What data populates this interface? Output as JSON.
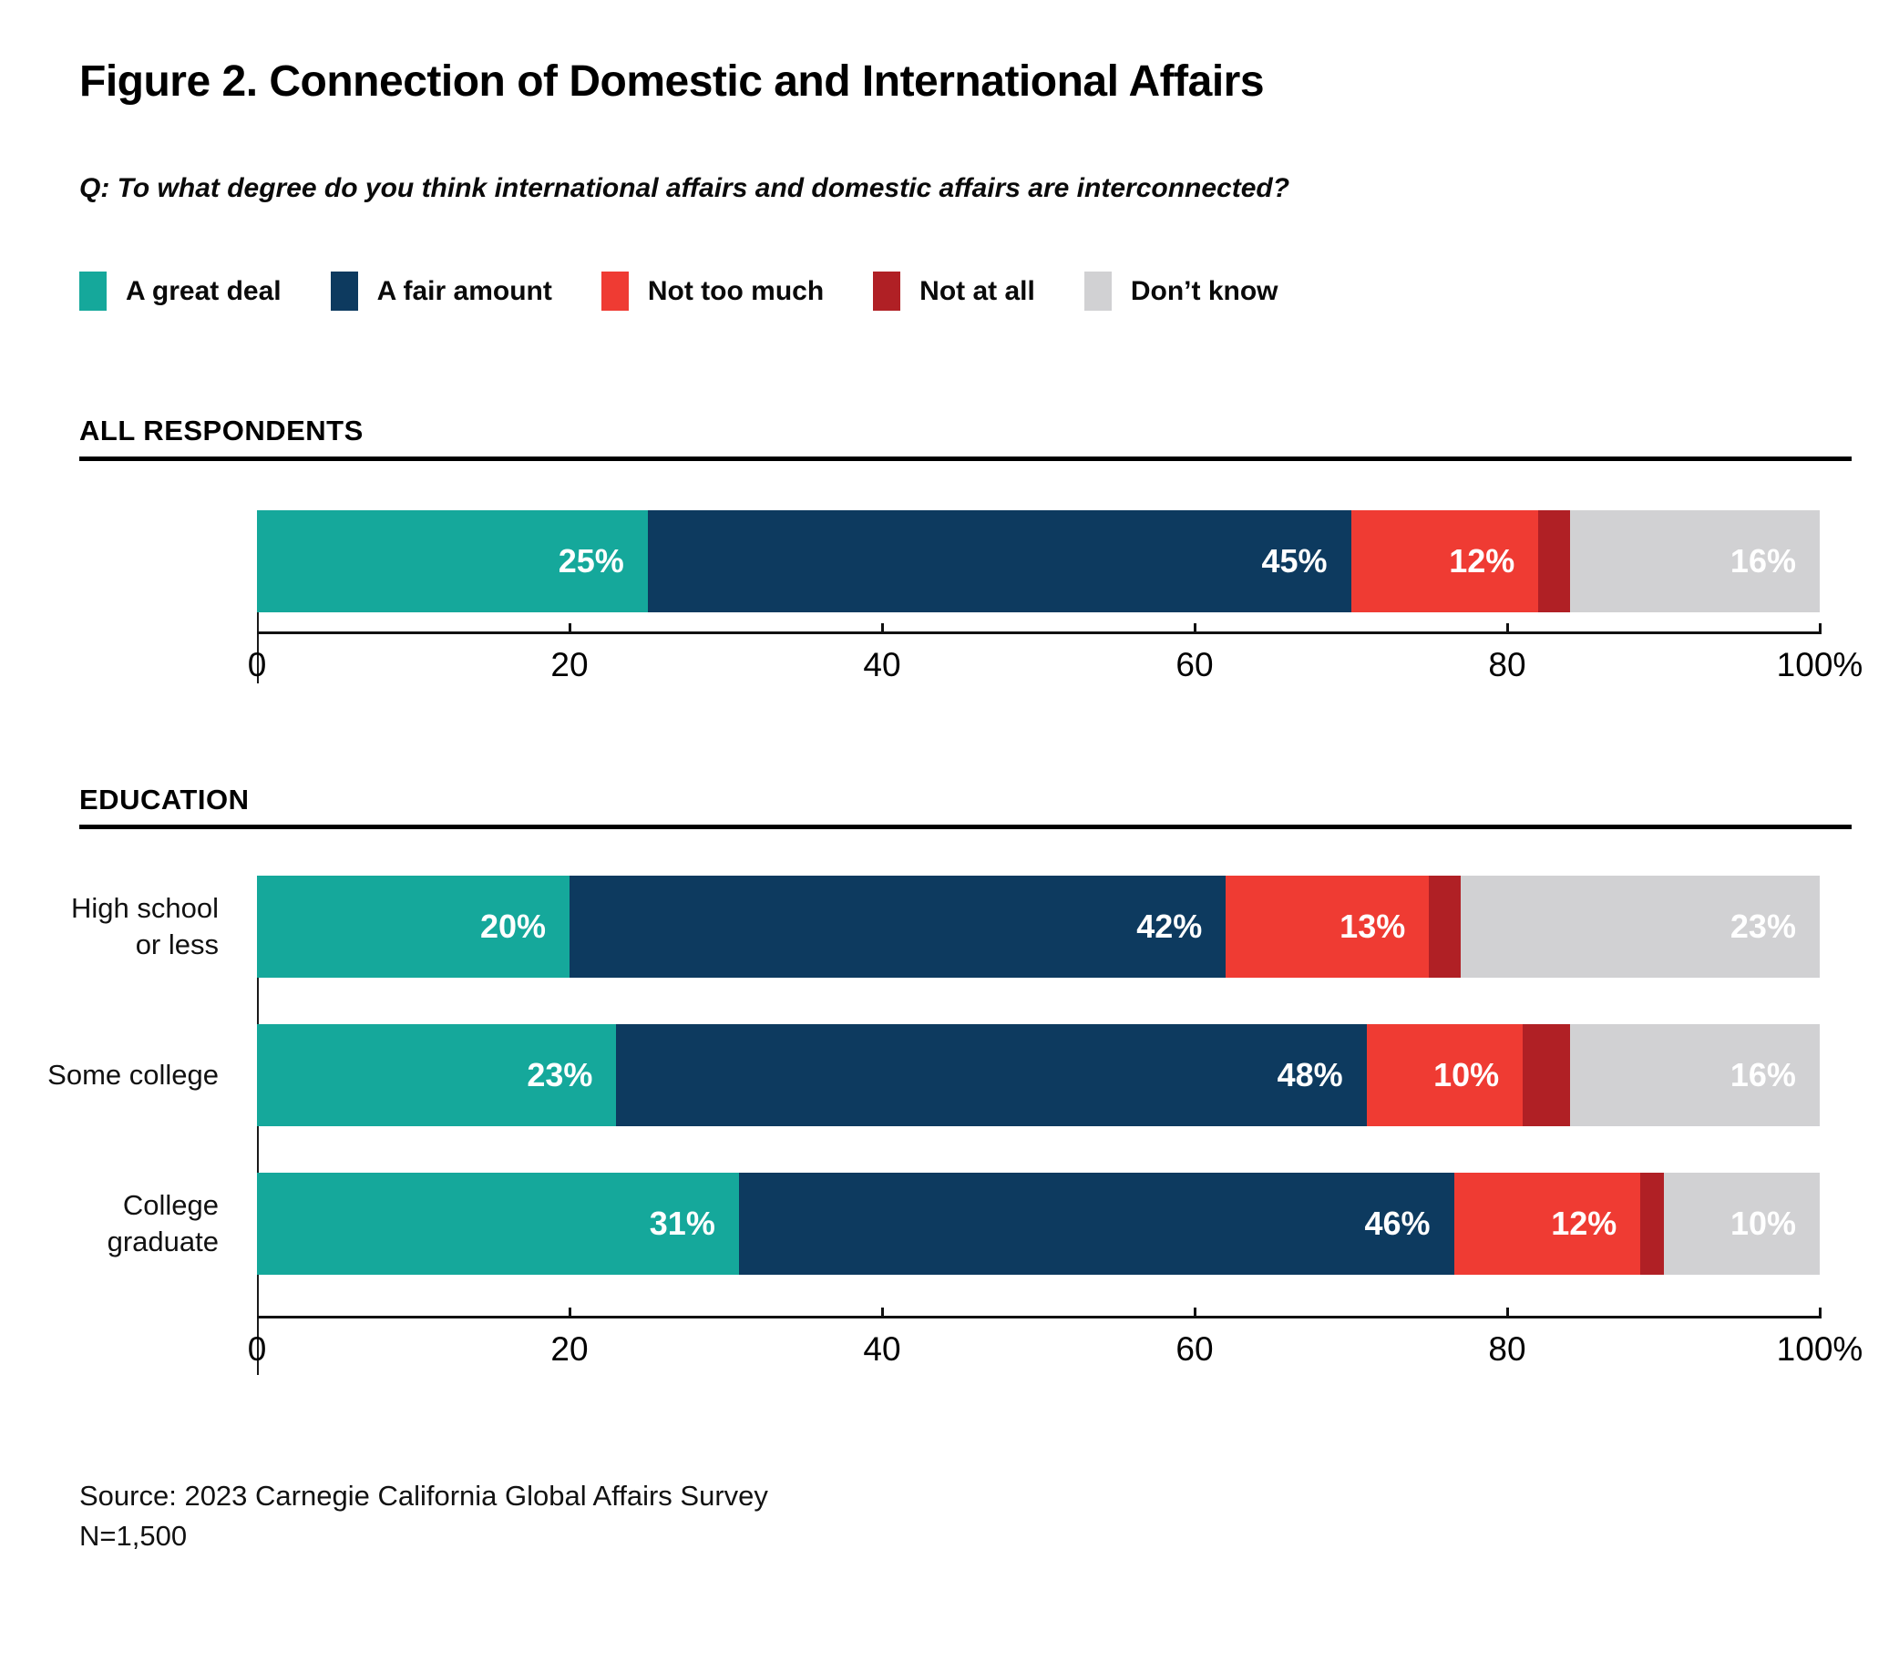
{
  "figure": {
    "title": "Figure 2. Connection of Domestic and International Affairs",
    "question": "Q: To what degree do you think international affairs and domestic affairs are interconnected?",
    "source_line1": "Source: 2023 Carnegie California Global Affairs Survey",
    "source_line2": "N=1,500"
  },
  "colors": {
    "a_great_deal": "#15A89B",
    "a_fair_amount": "#0D3A5F",
    "not_too_much": "#EF3B33",
    "not_at_all": "#B02025",
    "dont_know": "#D1D1D3",
    "axis": "#111111",
    "rule": "#000000",
    "value_label": "#FFFFFF"
  },
  "legend": {
    "items": [
      {
        "key": "a_great_deal",
        "label": "A great deal"
      },
      {
        "key": "a_fair_amount",
        "label": "A fair amount"
      },
      {
        "key": "not_too_much",
        "label": "Not too much"
      },
      {
        "key": "not_at_all",
        "label": "Not at all"
      },
      {
        "key": "dont_know",
        "label": "Don’t know"
      }
    ]
  },
  "chart_data": {
    "type": "bar",
    "stacked": true,
    "orientation": "horizontal",
    "series_order": [
      "a_great_deal",
      "a_fair_amount",
      "not_too_much",
      "not_at_all",
      "dont_know"
    ],
    "series_names": [
      "A great deal",
      "A fair amount",
      "Not too much",
      "Not at all",
      "Don’t know"
    ],
    "xlim": [
      0,
      100
    ],
    "x_ticks": [
      {
        "value": 0,
        "label": "0"
      },
      {
        "value": 20,
        "label": "20"
      },
      {
        "value": 40,
        "label": "40"
      },
      {
        "value": 60,
        "label": "60"
      },
      {
        "value": 80,
        "label": "80"
      },
      {
        "value": 100,
        "label": "100%"
      }
    ],
    "sections": [
      {
        "id": "all-respondents",
        "header": "ALL RESPONDENTS",
        "rows": [
          {
            "label_lines": [],
            "values": {
              "a_great_deal": 25,
              "a_fair_amount": 45,
              "not_too_much": 12,
              "not_at_all": 2,
              "dont_know": 16
            },
            "shown_labels": {
              "a_great_deal": "25%",
              "a_fair_amount": "45%",
              "not_too_much": "12%",
              "not_at_all": "",
              "dont_know": "16%"
            }
          }
        ]
      },
      {
        "id": "education",
        "header": "EDUCATION",
        "rows": [
          {
            "label_lines": [
              "High school",
              "or less"
            ],
            "values": {
              "a_great_deal": 20,
              "a_fair_amount": 42,
              "not_too_much": 13,
              "not_at_all": 2,
              "dont_know": 23
            },
            "shown_labels": {
              "a_great_deal": "20%",
              "a_fair_amount": "42%",
              "not_too_much": "13%",
              "not_at_all": "",
              "dont_know": "23%"
            }
          },
          {
            "label_lines": [
              "Some college"
            ],
            "values": {
              "a_great_deal": 23,
              "a_fair_amount": 48,
              "not_too_much": 10,
              "not_at_all": 3,
              "dont_know": 16
            },
            "shown_labels": {
              "a_great_deal": "23%",
              "a_fair_amount": "48%",
              "not_too_much": "10%",
              "not_at_all": "",
              "dont_know": "16%"
            }
          },
          {
            "label_lines": [
              "College",
              "graduate"
            ],
            "values": {
              "a_great_deal": 31,
              "a_fair_amount": 46,
              "not_too_much": 12,
              "not_at_all": 1,
              "dont_know": 10
            },
            "shown_labels": {
              "a_great_deal": "31%",
              "a_fair_amount": "46%",
              "not_too_much": "12%",
              "not_at_all": "",
              "dont_know": "10%"
            }
          }
        ]
      }
    ]
  }
}
